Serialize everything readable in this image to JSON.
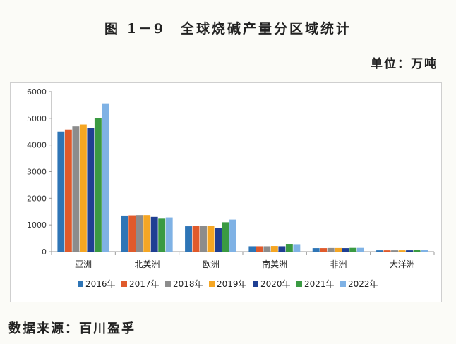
{
  "title": "图 1－9　全球烧碱产量分区域统计",
  "unit": "单位：万吨",
  "source": "数据来源：百川盈孚",
  "chart_data": {
    "type": "bar",
    "categories": [
      "亚洲",
      "北美洲",
      "欧洲",
      "南美洲",
      "非洲",
      "大洋洲"
    ],
    "ylim": [
      0,
      6000
    ],
    "yticks": [
      0,
      1000,
      2000,
      3000,
      4000,
      5000,
      6000
    ],
    "legend_position": "bottom",
    "grid": false,
    "series": [
      {
        "name": "2016年",
        "color": "#2e75b6",
        "values": [
          4500,
          1350,
          950,
          200,
          130,
          50
        ]
      },
      {
        "name": "2017年",
        "color": "#e05a2b",
        "values": [
          4580,
          1360,
          970,
          200,
          130,
          50
        ]
      },
      {
        "name": "2018年",
        "color": "#8c8c8c",
        "values": [
          4700,
          1370,
          960,
          200,
          135,
          50
        ]
      },
      {
        "name": "2019年",
        "color": "#f5a623",
        "values": [
          4770,
          1370,
          960,
          210,
          135,
          50
        ]
      },
      {
        "name": "2020年",
        "color": "#1f3f93",
        "values": [
          4640,
          1300,
          880,
          200,
          130,
          50
        ]
      },
      {
        "name": "2021年",
        "color": "#3a9a42",
        "values": [
          5000,
          1260,
          1100,
          290,
          140,
          55
        ]
      },
      {
        "name": "2022年",
        "color": "#7fb2e5",
        "values": [
          5560,
          1280,
          1200,
          280,
          140,
          55
        ]
      }
    ]
  }
}
